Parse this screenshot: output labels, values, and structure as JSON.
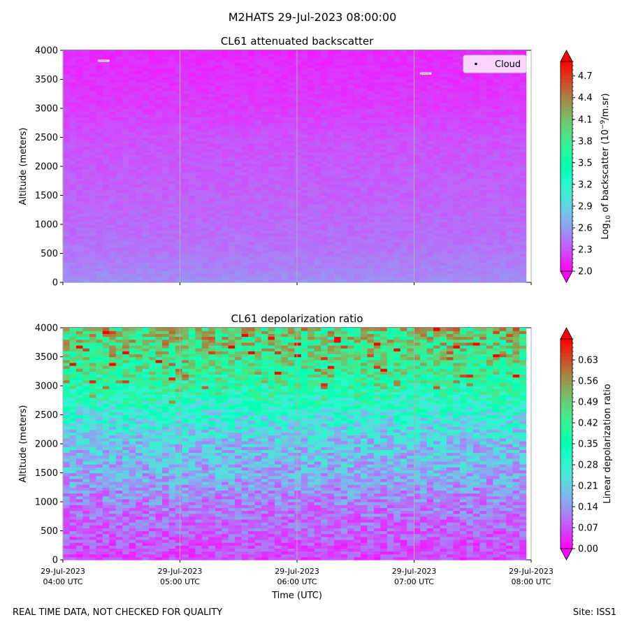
{
  "figure": {
    "suptitle": "M2HATS 29-Jul-2023 08:00:00",
    "footer_left": "REAL TIME DATA, NOT CHECKED FOR QUALITY",
    "footer_right": "Site: ISS1"
  },
  "chart_data": [
    {
      "type": "heatmap",
      "title": "CL61 attenuated backscatter",
      "ylabel": "Altitude (meters)",
      "xlabel": "",
      "ylim": [
        0,
        4000
      ],
      "yticks": [
        0,
        500,
        1000,
        1500,
        2000,
        2500,
        3000,
        3500,
        4000
      ],
      "xlim": [
        "2023-07-29 04:00",
        "2023-07-29 08:00"
      ],
      "xticks": [
        "2023-07-29 04:00",
        "2023-07-29 05:00",
        "2023-07-29 06:00",
        "2023-07-29 07:00",
        "2023-07-29 08:00"
      ],
      "grid": "x",
      "colormap": "rainbow",
      "colorbar": {
        "label_main": "Log",
        "label_sub": "10",
        "label_rest1": " of backscatter (10",
        "label_sup": "−9",
        "label_rest2": "/m.sr)",
        "min": 2.0,
        "max": 4.9,
        "ticks": [
          "2.0",
          "2.3",
          "2.6",
          "2.9",
          "3.2",
          "3.5",
          "3.8",
          "4.1",
          "4.4",
          "4.7"
        ],
        "extend": "both"
      },
      "legend": {
        "entries": [
          "Cloud"
        ],
        "placement": "top-right"
      },
      "profile": [
        {
          "altitude": 0,
          "value": 2.55
        },
        {
          "altitude": 200,
          "value": 2.5
        },
        {
          "altitude": 700,
          "value": 2.42
        },
        {
          "altitude": 1500,
          "value": 2.36
        },
        {
          "altitude": 2500,
          "value": 2.3
        },
        {
          "altitude": 3000,
          "value": 2.22
        },
        {
          "altitude": 3500,
          "value": 2.18
        },
        {
          "altitude": 4000,
          "value": 2.15
        }
      ],
      "cloud_hits": [
        {
          "time": "2023-07-29 04:21",
          "altitude": 3820
        },
        {
          "time": "2023-07-29 07:06",
          "altitude": 3600
        }
      ]
    },
    {
      "type": "heatmap",
      "title": "CL61 depolarization ratio",
      "ylabel": "Altitude (meters)",
      "xlabel": "Time (UTC)",
      "ylim": [
        0,
        4000
      ],
      "yticks": [
        0,
        500,
        1000,
        1500,
        2000,
        2500,
        3000,
        3500,
        4000
      ],
      "xlim": [
        "2023-07-29 04:00",
        "2023-07-29 08:00"
      ],
      "xticks": [
        "2023-07-29 04:00",
        "2023-07-29 05:00",
        "2023-07-29 06:00",
        "2023-07-29 07:00",
        "2023-07-29 08:00"
      ],
      "xticklabels": [
        [
          "29-Jul-2023",
          "04:00 UTC"
        ],
        [
          "29-Jul-2023",
          "05:00 UTC"
        ],
        [
          "29-Jul-2023",
          "06:00 UTC"
        ],
        [
          "29-Jul-2023",
          "07:00 UTC"
        ],
        [
          "29-Jul-2023",
          "08:00 UTC"
        ]
      ],
      "grid": "x",
      "colormap": "rainbow",
      "colorbar": {
        "label": "Linear depolarization ratio",
        "min": 0.0,
        "max": 0.7,
        "ticks": [
          "0.00",
          "0.07",
          "0.14",
          "0.21",
          "0.28",
          "0.35",
          "0.42",
          "0.49",
          "0.56",
          "0.63"
        ],
        "extend": "both"
      },
      "profile": [
        {
          "altitude": 0,
          "value": 0.06
        },
        {
          "altitude": 500,
          "value": 0.09
        },
        {
          "altitude": 1000,
          "value": 0.12
        },
        {
          "altitude": 1500,
          "value": 0.17
        },
        {
          "altitude": 2000,
          "value": 0.2
        },
        {
          "altitude": 2500,
          "value": 0.27
        },
        {
          "altitude": 3000,
          "value": 0.38
        },
        {
          "altitude": 3500,
          "value": 0.45
        },
        {
          "altitude": 4000,
          "value": 0.48
        }
      ]
    }
  ]
}
